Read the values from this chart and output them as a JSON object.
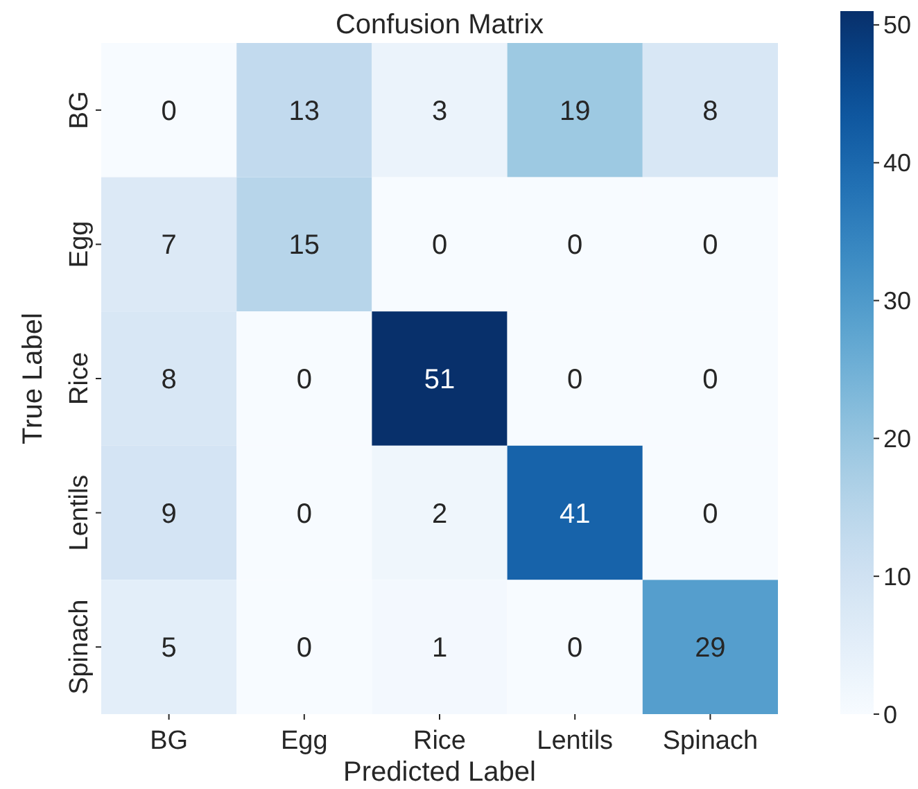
{
  "chart_data": {
    "type": "heatmap",
    "title": "Confusion Matrix",
    "xlabel": "Predicted Label",
    "ylabel": "True Label",
    "categories": [
      "BG",
      "Egg",
      "Rice",
      "Lentils",
      "Spinach"
    ],
    "y_categories": [
      "BG",
      "Egg",
      "Rice",
      "Lentils",
      "Spinach"
    ],
    "cells": [
      [
        0,
        13,
        3,
        19,
        8
      ],
      [
        7,
        15,
        0,
        0,
        0
      ],
      [
        8,
        0,
        51,
        0,
        0
      ],
      [
        9,
        0,
        2,
        41,
        0
      ],
      [
        5,
        0,
        1,
        0,
        29
      ]
    ],
    "data_labels": true,
    "clim": [
      0,
      51
    ],
    "cticks": [
      0,
      10,
      20,
      30,
      40,
      50
    ]
  }
}
